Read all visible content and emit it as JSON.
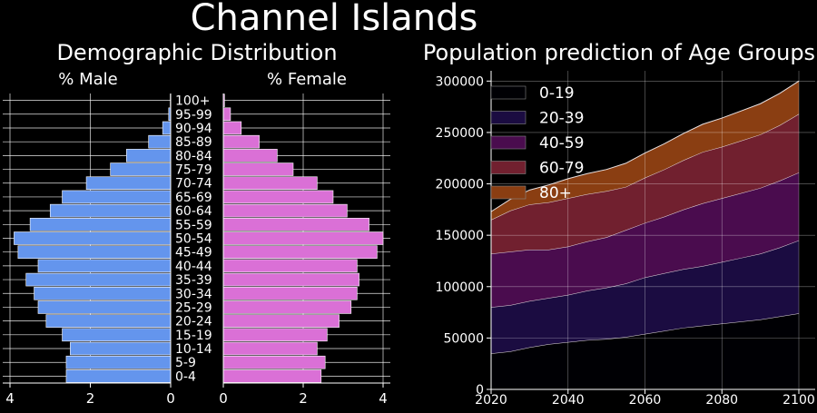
{
  "figure": {
    "title": "Channel Islands",
    "left_title": "Demographic Distribution",
    "male_label": "% Male",
    "female_label": "% Female",
    "right_title": "Population prediction of Age Groups"
  },
  "colors": {
    "background": "#000000",
    "male": "#6495ED",
    "female": "#DA70D6",
    "grid": "#ffffff",
    "area_0_19": "#000004",
    "area_20_39": "#1b0c41",
    "area_40_59": "#4a0c4e",
    "area_60_79": "#71202f",
    "area_80_plus": "#8a3e12"
  },
  "chart_data": [
    {
      "type": "bar",
      "orientation": "horizontal",
      "title": "% Male",
      "categories": [
        "0-4",
        "5-9",
        "10-14",
        "15-19",
        "20-24",
        "25-29",
        "30-34",
        "35-39",
        "40-44",
        "45-49",
        "50-54",
        "55-59",
        "60-64",
        "65-69",
        "70-74",
        "75-79",
        "80-84",
        "85-89",
        "90-94",
        "95-99",
        "100+"
      ],
      "values": [
        2.6,
        2.6,
        2.5,
        2.7,
        3.1,
        3.3,
        3.4,
        3.6,
        3.3,
        3.8,
        3.9,
        3.5,
        3.0,
        2.7,
        2.1,
        1.5,
        1.1,
        0.55,
        0.2,
        0.05,
        0.01
      ],
      "xlim": [
        4,
        0
      ],
      "xticks": [
        "4",
        "2",
        "0"
      ],
      "grid": true
    },
    {
      "type": "bar",
      "orientation": "horizontal",
      "title": "% Female",
      "categories": [
        "0-4",
        "5-9",
        "10-14",
        "15-19",
        "20-24",
        "25-29",
        "30-34",
        "35-39",
        "40-44",
        "45-49",
        "50-54",
        "55-59",
        "60-64",
        "65-69",
        "70-74",
        "75-79",
        "80-84",
        "85-89",
        "90-94",
        "95-99",
        "100+"
      ],
      "values": [
        2.45,
        2.55,
        2.35,
        2.6,
        2.9,
        3.2,
        3.35,
        3.4,
        3.35,
        3.85,
        4.0,
        3.65,
        3.1,
        2.75,
        2.35,
        1.75,
        1.35,
        0.9,
        0.45,
        0.18,
        0.03
      ],
      "xlim": [
        0,
        4
      ],
      "xticks": [
        "0",
        "2",
        "4"
      ],
      "grid": true
    },
    {
      "type": "area",
      "stacked": true,
      "title": "Population prediction of Age Groups",
      "x": [
        2020,
        2025,
        2030,
        2035,
        2040,
        2045,
        2050,
        2055,
        2060,
        2065,
        2070,
        2075,
        2080,
        2085,
        2090,
        2095,
        2100
      ],
      "series": [
        {
          "name": "0-19",
          "values": [
            35000,
            37000,
            41000,
            44000,
            46000,
            48000,
            49000,
            51000,
            54000,
            57000,
            60000,
            62000,
            64000,
            66000,
            68000,
            71000,
            74000
          ]
        },
        {
          "name": "20-39",
          "values": [
            45000,
            45000,
            45000,
            45000,
            46000,
            48000,
            50000,
            52000,
            55000,
            56000,
            57000,
            58000,
            60000,
            62000,
            64000,
            67000,
            71000
          ]
        },
        {
          "name": "40-59",
          "values": [
            52000,
            52000,
            50000,
            47000,
            47000,
            48000,
            49000,
            52000,
            53000,
            55000,
            58000,
            61000,
            62000,
            63000,
            64000,
            65000,
            66000
          ]
        },
        {
          "name": "60-79",
          "values": [
            33000,
            40000,
            44000,
            46000,
            47000,
            46000,
            45000,
            42000,
            44000,
            46000,
            48000,
            50000,
            50000,
            51000,
            52000,
            54000,
            57000
          ]
        },
        {
          "name": "80+",
          "values": [
            8000,
            11000,
            14000,
            17000,
            19000,
            20000,
            21000,
            23000,
            24000,
            25000,
            26000,
            27000,
            28000,
            29000,
            30000,
            31000,
            32000
          ]
        }
      ],
      "xlim": [
        2020,
        2100
      ],
      "ylim": [
        0,
        310000
      ],
      "xticks": [
        2020,
        2040,
        2060,
        2080,
        2100
      ],
      "yticks": [
        0,
        50000,
        100000,
        150000,
        200000,
        250000,
        300000
      ],
      "legend": "top-left",
      "grid": true
    }
  ]
}
